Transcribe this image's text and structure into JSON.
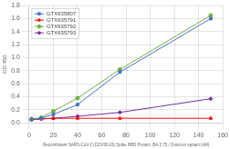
{
  "chart_data": {
    "type": "line",
    "xlabel": "Recombinant SARS-CoV-2 (COVID-19) Spike RBD Protein, BA.2.75 / Omicron variant (nM)",
    "ylabel": "OD 450",
    "x": [
      2,
      10,
      20,
      40,
      75,
      150
    ],
    "series": [
      {
        "name": "GTX635807",
        "color": "#4472C4",
        "marker": "square",
        "values": [
          0.05,
          0.07,
          0.13,
          0.28,
          0.78,
          1.6
        ]
      },
      {
        "name": "GTX635791",
        "color": "#FF0000",
        "marker": "triangle",
        "values": [
          0.05,
          0.06,
          0.07,
          0.07,
          0.07,
          0.07
        ]
      },
      {
        "name": "GTX635792",
        "color": "#70AD47",
        "marker": "circle",
        "values": [
          0.06,
          0.08,
          0.18,
          0.38,
          0.82,
          1.65
        ]
      },
      {
        "name": "GTX635793",
        "color": "#7030A0",
        "marker": "diamond",
        "values": [
          0.05,
          0.06,
          0.07,
          0.1,
          0.16,
          0.37
        ]
      }
    ],
    "xlim": [
      0,
      160
    ],
    "ylim": [
      0,
      1.8
    ],
    "xticks": [
      0,
      20,
      40,
      60,
      80,
      100,
      120,
      140,
      160
    ],
    "yticks": [
      {
        "value": 0,
        "label": "0.0"
      },
      0.2,
      0.4,
      0.6,
      0.8,
      {
        "value": 1.0,
        "label": "1.0"
      },
      1.2,
      1.4,
      1.6,
      1.8
    ],
    "grid": true,
    "legend": "upper left"
  }
}
